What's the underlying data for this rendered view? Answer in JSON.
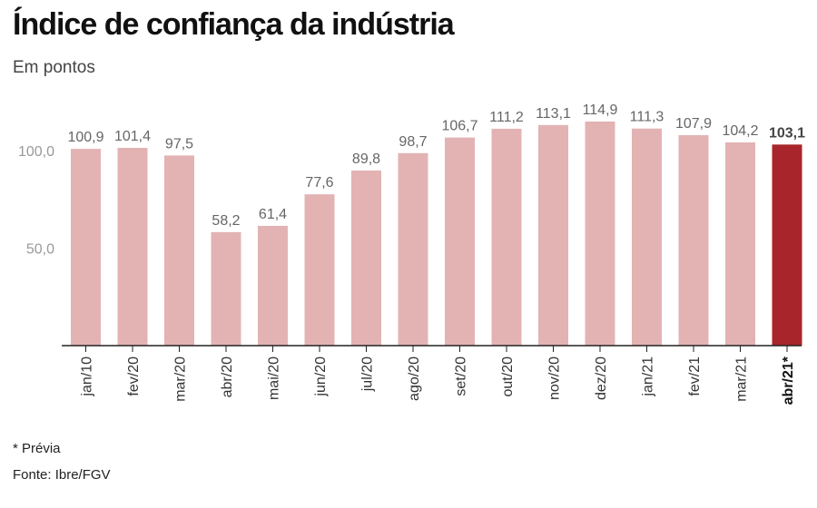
{
  "title": "Índice de confiança da indústria",
  "subtitle": "Em pontos",
  "footnote": "* Prévia",
  "source": "Fonte: Ibre/FGV",
  "colors": {
    "bar": "#e3b3b3",
    "highlight": "#a8262b",
    "axis": "#222222",
    "tick_text": "#999999",
    "label_text": "#666666",
    "highlight_text": "#444444"
  },
  "chart_data": {
    "type": "bar",
    "title": "Índice de confiança da indústria",
    "ylabel": "Em pontos",
    "categories": [
      "jan/10",
      "fev/20",
      "mar/20",
      "abr/20",
      "mai/20",
      "jun/20",
      "jul/20",
      "ago/20",
      "set/20",
      "out/20",
      "nov/20",
      "dez/20",
      "jan/21",
      "fev/21",
      "mar/21",
      "abr/21*"
    ],
    "values": [
      100.9,
      101.4,
      97.5,
      58.2,
      61.4,
      77.6,
      89.8,
      98.7,
      106.7,
      111.2,
      113.1,
      114.9,
      111.3,
      107.9,
      104.2,
      103.1
    ],
    "value_labels": [
      "100,9",
      "101,4",
      "97,5",
      "58,2",
      "61,4",
      "77,6",
      "89,8",
      "98,7",
      "106,7",
      "111,2",
      "113,1",
      "114,9",
      "111,3",
      "107,9",
      "104,2",
      "103,1"
    ],
    "highlight_index": 15,
    "y_ticks": [
      50,
      100
    ],
    "y_tick_labels": [
      "50,0",
      "100,0"
    ],
    "ylim": [
      0,
      125
    ],
    "grid": false
  }
}
